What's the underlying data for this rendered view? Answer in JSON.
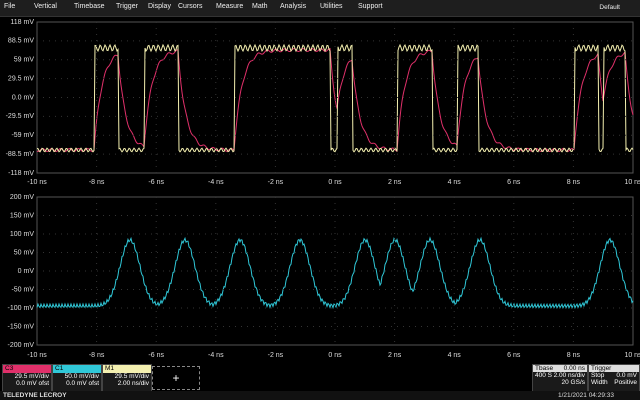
{
  "menu": {
    "items": [
      "File",
      "Vertical",
      "Timebase",
      "Trigger",
      "Display",
      "Cursors",
      "Measure",
      "Math",
      "Analysis",
      "Utilities",
      "Support"
    ],
    "default": "Default"
  },
  "top_grid": {
    "y_labels": [
      "118 mV",
      "88.5 mV",
      "59 mV",
      "29.5 mV",
      "0.0 mV",
      "-29.5 mV",
      "-59 mV",
      "-88.5 mV",
      "-118 mV"
    ],
    "x_labels": [
      "-10 ns",
      "-8 ns",
      "-6 ns",
      "-4 ns",
      "-2 ns",
      "0 ns",
      "2 ns",
      "4 ns",
      "6 ns",
      "8 ns",
      "10 ns"
    ]
  },
  "bottom_grid": {
    "y_labels": [
      "200 mV",
      "150 mV",
      "100 mV",
      "50 mV",
      "0 mV",
      "-50 mV",
      "-100 mV",
      "-150 mV",
      "-200 mV"
    ],
    "x_labels": [
      "-10 ns",
      "-8 ns",
      "-6 ns",
      "-4 ns",
      "-2 ns",
      "0 ns",
      "2 ns",
      "4 ns",
      "6 ns",
      "8 ns",
      "10 ns"
    ]
  },
  "channels": [
    {
      "name": "C3",
      "scale": "29.5 mV/div",
      "offset": "0.0 mV ofst"
    },
    {
      "name": "C1",
      "scale": "50.0 mV/div",
      "offset": "0.0 mV ofst"
    },
    {
      "name": "M1",
      "scale": "29.5 mV/div",
      "offset": "2.00 ns/div"
    }
  ],
  "timebase": {
    "name": "Tbase",
    "delay": "0.00 ns",
    "samples": "400 S",
    "scale": "2.00 ns/div",
    "rate": "20 GS/s"
  },
  "trigger": {
    "name": "Trigger",
    "mode": "Stop",
    "level": "0.0 mV",
    "type": "Width",
    "polarity": "Positive"
  },
  "footer": {
    "brand": "TELEDYNE LECROY",
    "datetime": "1/21/2021 04:29:33"
  }
}
